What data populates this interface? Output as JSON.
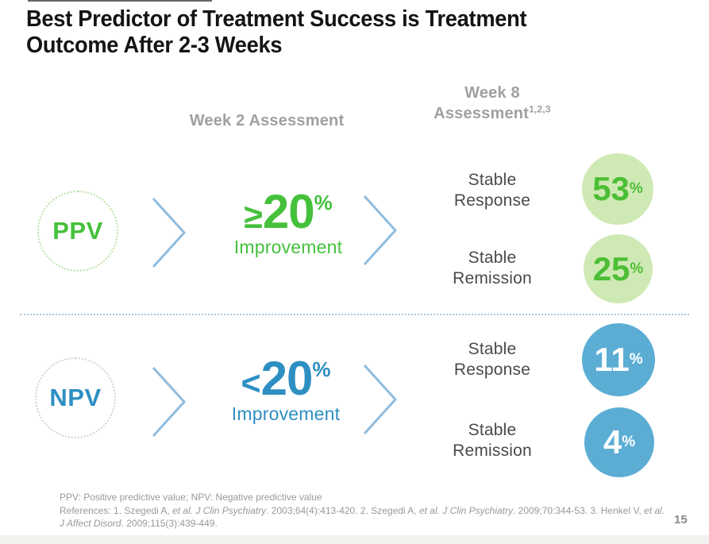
{
  "slide": {
    "title_line1": "Best Predictor of Treatment Success is Treatment",
    "title_line2": "Outcome After 2-3 Weeks",
    "page_number": "15",
    "footnote": "PPV: Positive predictive value; NPV: Negative predictive value"
  },
  "columns": {
    "week2_header": "Week 2 Assessment",
    "week8_line1": "Week 8",
    "week8_line2": "Assessment",
    "week8_superscript": "1,2,3"
  },
  "rows": [
    {
      "predictor": "PPV",
      "comparator": "≥",
      "value": "20",
      "unit": "%",
      "improvement_label": "Improvement",
      "outcomes": [
        {
          "label": "Stable Response",
          "value": "53",
          "unit": "%"
        },
        {
          "label": "Stable Remission",
          "value": "25",
          "unit": "%"
        }
      ]
    },
    {
      "predictor": "NPV",
      "comparator": "<",
      "value": "20",
      "unit": "%",
      "improvement_label": "Improvement",
      "outcomes": [
        {
          "label": "Stable Response",
          "value": "11",
          "unit": "%"
        },
        {
          "label": "Stable Remission",
          "value": "4",
          "unit": "%"
        }
      ]
    }
  ],
  "references": {
    "segments": [
      {
        "t": "References: 1. Szegedi A, ",
        "i": false
      },
      {
        "t": "et al. J Clin Psychiatry",
        "i": true
      },
      {
        "t": ". 2003;64(4):413-420. 2. Szegedi A, ",
        "i": false
      },
      {
        "t": "et al. J Clin Psychiatry",
        "i": true
      },
      {
        "t": ". 2009;70:344-53. 3. Henkel V, ",
        "i": false
      },
      {
        "t": "et al. J Affect Disord.",
        "i": true
      },
      {
        "t": " 2009;115(3):439-449.",
        "i": false
      }
    ]
  },
  "colors": {
    "green_text": "#45c13c",
    "green_circle_fill": "#cfe9b4",
    "green_circle_value": "#4cbe35",
    "green_dotted_border": "#b9e2a7",
    "blue_text": "#2e8fc2",
    "blue_circle_fill": "#5cadd4",
    "npv_dotted_border": "#cbd5dc",
    "chevron_blue": "#8fbcde",
    "divider_blue": "#a9c7db",
    "column_header_gray": "#a0a0a0",
    "outcome_label_gray": "#4a4a4c",
    "footer_gray": "#9b9995",
    "title_black": "#141414"
  }
}
